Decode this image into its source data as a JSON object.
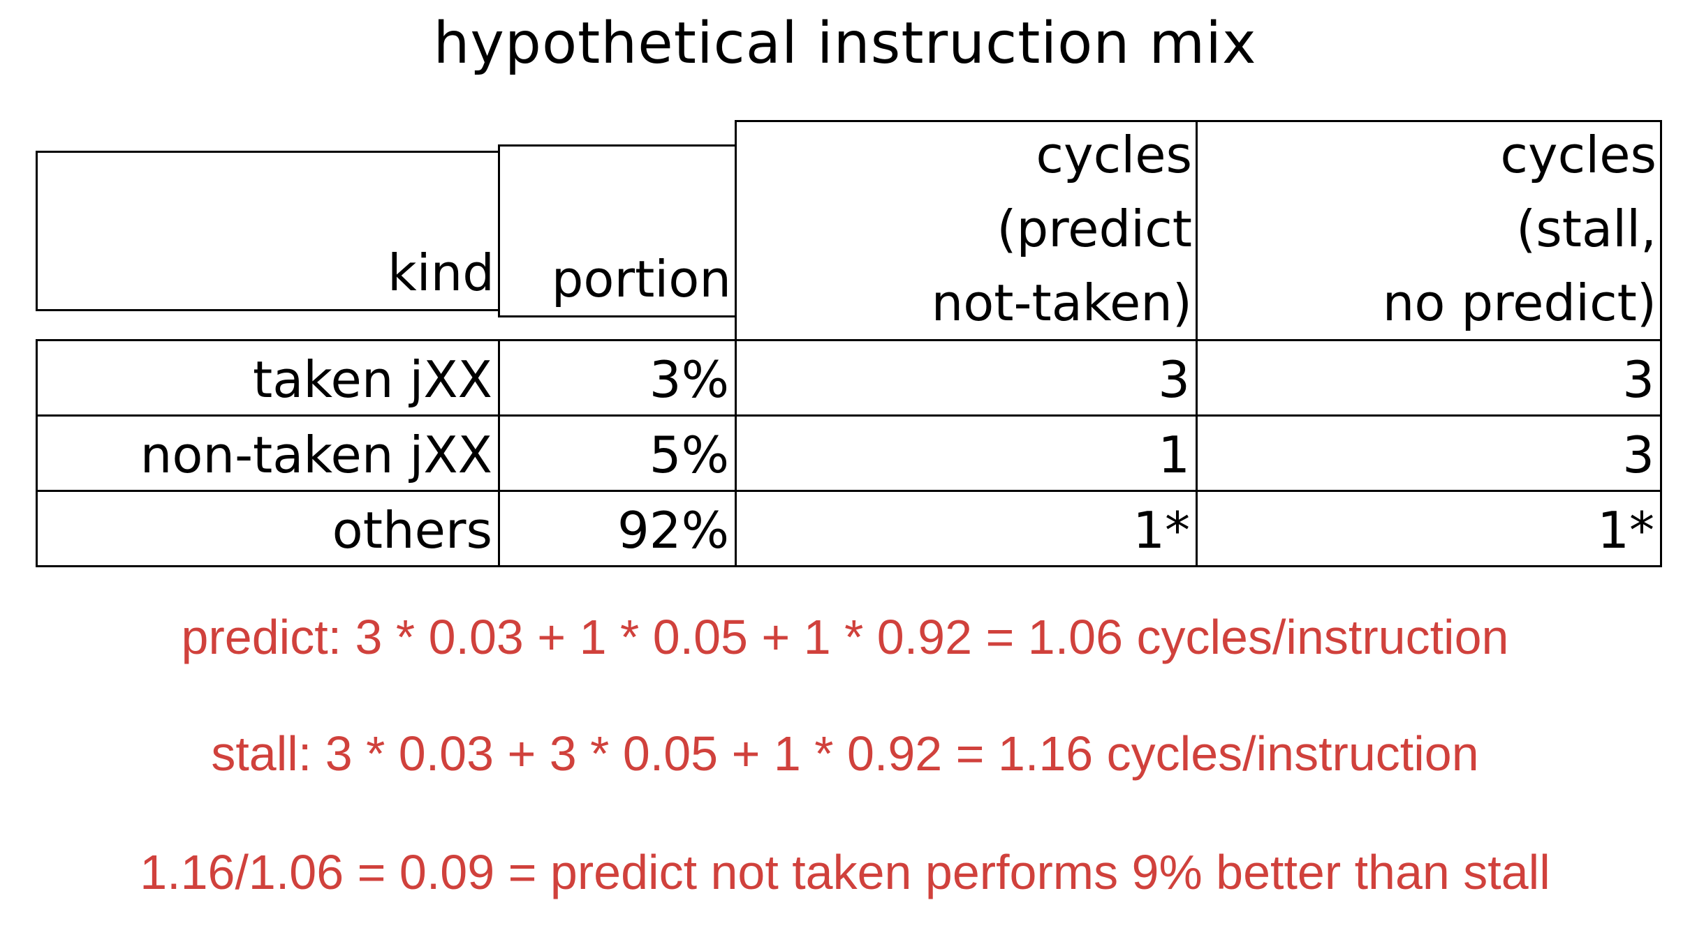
{
  "title": "hypothetical instruction mix",
  "table": {
    "headers": {
      "kind": "kind",
      "portion": "portion",
      "predict": [
        "cycles",
        "(predict",
        "not-taken)"
      ],
      "stall": [
        "cycles",
        "(stall,",
        "no predict)"
      ]
    },
    "rows": [
      {
        "kind": "taken jXX",
        "portion": "3%",
        "predict": "3",
        "stall": "3"
      },
      {
        "kind": "non-taken jXX",
        "portion": "5%",
        "predict": "1",
        "stall": "3"
      },
      {
        "kind": "others",
        "portion": "92%",
        "predict": "1*",
        "stall": "1*"
      }
    ]
  },
  "notes": {
    "predict": "predict: 3 * 0.03 + 1 * 0.05 + 1 * 0.92 = 1.06 cycles/instruction",
    "stall": "stall: 3 * 0.03 + 3 * 0.05 + 1 * 0.92 = 1.16 cycles/instruction",
    "conclusion": "1.16/1.06 = 0.09 = predict not taken performs 9% better than stall"
  },
  "colors": {
    "note_text": "#d0413c",
    "border": "#000000"
  }
}
